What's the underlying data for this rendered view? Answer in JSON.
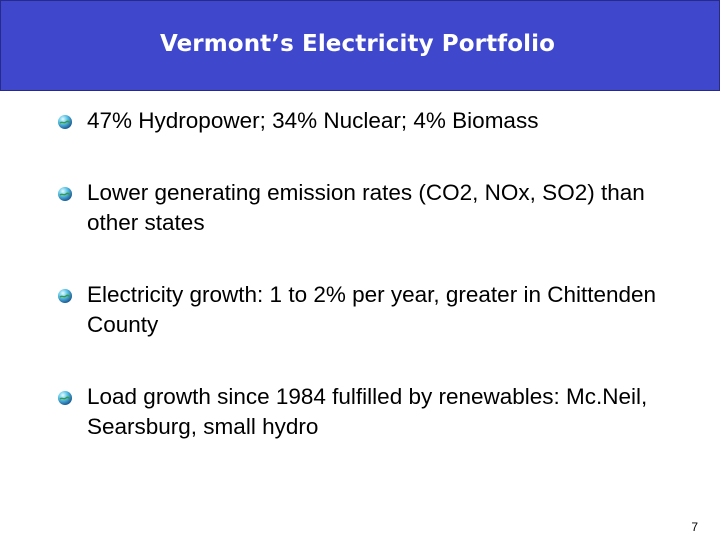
{
  "slide": {
    "title": "Vermont’s Electricity Portfolio",
    "bullets": [
      {
        "text": "47% Hydropower; 34% Nuclear; 4% Biomass",
        "icon": "globe-bullet-icon"
      },
      {
        "text": "Lower generating emission rates (CO2, NOx, SO2) than other states",
        "icon": "globe-bullet-icon"
      },
      {
        "text": "Electricity growth: 1 to 2% per year, greater in Chittenden County",
        "icon": "globe-bullet-icon"
      },
      {
        "text": "Load growth since 1984 fulfilled by renewables: Mc.Neil, Searsburg, small hydro",
        "icon": "globe-bullet-icon"
      }
    ],
    "page_number": "7"
  },
  "colors": {
    "title_bar": "#3f48cc",
    "title_text": "#ffffff",
    "body_text": "#000000"
  }
}
